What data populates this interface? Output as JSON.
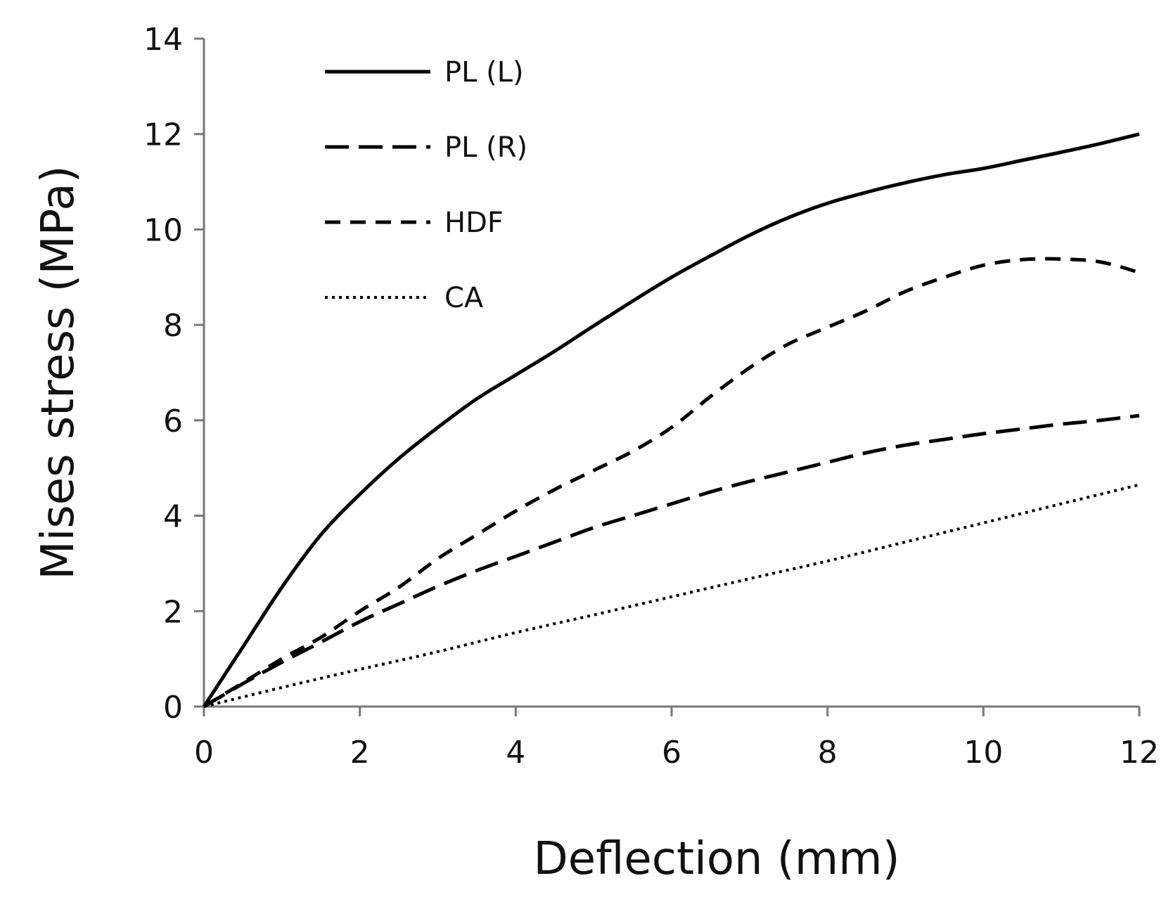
{
  "chart_data": {
    "type": "line",
    "title": "",
    "xlabel": "Deflection (mm)",
    "ylabel": "Mises stress (MPa)",
    "xlim": [
      0,
      12
    ],
    "ylim": [
      0,
      14
    ],
    "xticks": [
      0,
      2,
      4,
      6,
      8,
      10,
      12
    ],
    "yticks": [
      0,
      2,
      4,
      6,
      8,
      10,
      12,
      14
    ],
    "grid": false,
    "legend_position": "top-left",
    "series": [
      {
        "name": "PL (L)",
        "style": "solid",
        "x": [
          0,
          0.5,
          1,
          1.5,
          2,
          2.5,
          3,
          3.5,
          4,
          4.5,
          5,
          5.5,
          6,
          6.5,
          7,
          7.5,
          8,
          8.5,
          9,
          9.5,
          10,
          10.5,
          11,
          11.5,
          12
        ],
        "y": [
          0,
          1.25,
          2.5,
          3.6,
          4.45,
          5.2,
          5.85,
          6.45,
          6.95,
          7.45,
          7.98,
          8.5,
          9.0,
          9.45,
          9.88,
          10.25,
          10.55,
          10.78,
          10.98,
          11.15,
          11.28,
          11.45,
          11.62,
          11.8,
          12.0
        ]
      },
      {
        "name": "PL (R)",
        "style": "long-dash",
        "x": [
          0,
          0.5,
          1,
          1.5,
          2,
          2.5,
          3,
          3.5,
          4,
          4.5,
          5,
          5.5,
          6,
          6.5,
          7,
          7.5,
          8,
          8.5,
          9,
          9.5,
          10,
          10.5,
          11,
          11.5,
          12
        ],
        "y": [
          0,
          0.48,
          0.93,
          1.35,
          1.78,
          2.15,
          2.52,
          2.85,
          3.15,
          3.45,
          3.75,
          4.0,
          4.25,
          4.5,
          4.72,
          4.92,
          5.12,
          5.32,
          5.48,
          5.6,
          5.72,
          5.82,
          5.92,
          6.0,
          6.1
        ]
      },
      {
        "name": "HDF",
        "style": "dash",
        "x": [
          0,
          0.5,
          1,
          1.5,
          2,
          2.5,
          3,
          3.5,
          4,
          4.5,
          5,
          5.5,
          6,
          6.5,
          7,
          7.5,
          8,
          8.5,
          9,
          9.5,
          10,
          10.5,
          11,
          11.5,
          12
        ],
        "y": [
          0,
          0.5,
          1.0,
          1.45,
          2.0,
          2.5,
          3.1,
          3.6,
          4.1,
          4.55,
          4.95,
          5.35,
          5.85,
          6.5,
          7.1,
          7.6,
          7.95,
          8.3,
          8.7,
          9.0,
          9.25,
          9.37,
          9.38,
          9.32,
          9.1
        ]
      },
      {
        "name": "CA",
        "style": "dotted",
        "x": [
          0,
          1,
          2,
          3,
          4,
          5,
          6,
          7,
          8,
          9,
          10,
          11,
          12
        ],
        "y": [
          0,
          0.4,
          0.78,
          1.15,
          1.55,
          1.92,
          2.3,
          2.68,
          3.05,
          3.45,
          3.85,
          4.25,
          4.65
        ]
      }
    ]
  }
}
